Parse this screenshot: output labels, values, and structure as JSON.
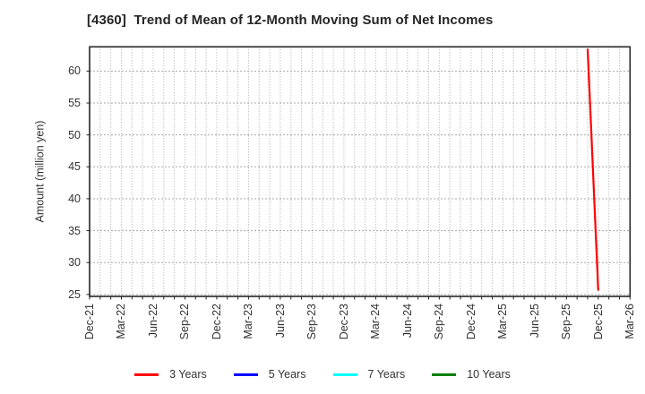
{
  "chart_data": {
    "type": "line",
    "title": "[4360]  Trend of Mean of 12-Month Moving Sum of Net Incomes",
    "xlabel": "",
    "ylabel": "Amount (million yen)",
    "x_tick_labels": [
      "Dec-21",
      "Mar-22",
      "Jun-22",
      "Sep-22",
      "Dec-22",
      "Mar-23",
      "Jun-23",
      "Sep-23",
      "Dec-23",
      "Mar-24",
      "Jun-24",
      "Sep-24",
      "Dec-24",
      "Mar-25",
      "Jun-25",
      "Sep-25",
      "Dec-25",
      "Mar-26"
    ],
    "x_tick_month_step": 3,
    "x_range_months": 51,
    "y_ticks": [
      25,
      30,
      35,
      40,
      45,
      50,
      55,
      60
    ],
    "ylim": [
      24.7,
      63.8
    ],
    "grid": true,
    "legend_position": "bottom",
    "series": [
      {
        "name": "3 Years",
        "color": "#ff0000",
        "points": [
          {
            "x": "Nov-25",
            "y": 63.5
          },
          {
            "x": "Dec-25",
            "y": 25.6
          }
        ]
      },
      {
        "name": "5 Years",
        "color": "#0000ff",
        "points": []
      },
      {
        "name": "7 Years",
        "color": "#00ffff",
        "points": []
      },
      {
        "name": "10 Years",
        "color": "#008000",
        "points": []
      }
    ],
    "style": {
      "grid_color": "#aaaaaa",
      "axis_color": "#262626",
      "text_color": "#333333",
      "line_width": 2.2
    }
  }
}
